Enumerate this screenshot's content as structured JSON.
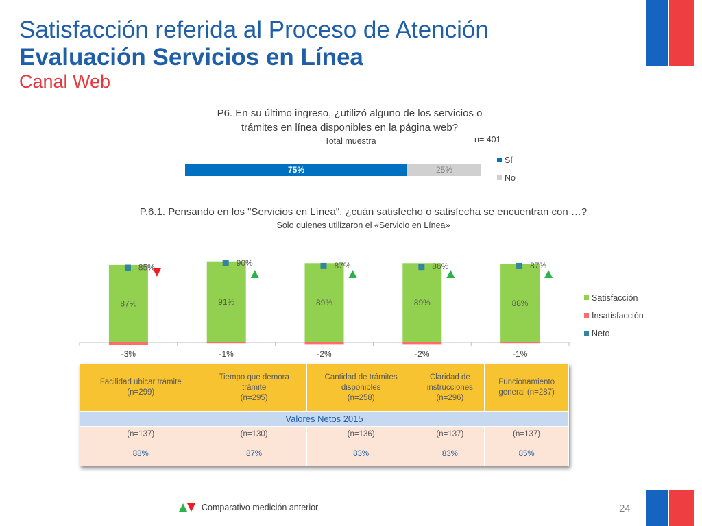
{
  "header": {
    "title_line1": "Satisfacción referida al Proceso de Atención",
    "title_line2": "Evaluación Servicios en Línea",
    "title_line3": "Canal Web"
  },
  "question1": {
    "text_line1": "P6. En su último ingreso, ¿utilizó alguno de los servicios o",
    "text_line2": "trámites en línea disponibles en la página web?",
    "subtitle": "Total muestra",
    "n_label": "n= 401"
  },
  "question2": {
    "text": "P.6.1. Pensando en los \"Servicios en Línea\", ¿cuán satisfecho o satisfecha se encuentran con …?",
    "subtitle": "Solo quienes utilizaron el «Servicio en Línea»"
  },
  "colors": {
    "si": "#0070c0",
    "no": "#d0d0d0",
    "satisfaccion": "#92d050",
    "insatisfaccion": "#ff6b6b",
    "neto": "#31859c",
    "up": "#2db24a",
    "down": "#ee1c25",
    "header_fill": "#f7c331"
  },
  "chart_data": [
    {
      "type": "bar",
      "stacked": true,
      "orientation": "horizontal",
      "series": [
        {
          "name": "Sí",
          "values": [
            75
          ],
          "label": "75%"
        },
        {
          "name": "No",
          "values": [
            25
          ],
          "label": "25%"
        }
      ],
      "legend_position": "right"
    },
    {
      "type": "bar",
      "categories": [
        "Facilidad ubicar trámite",
        "Tiempo que demora trámite",
        "Cantidad de trámites disponibles",
        "Claridad de instrucciones",
        "Funcionamiento general"
      ],
      "series": [
        {
          "name": "Satisfacción",
          "values": [
            87,
            91,
            89,
            89,
            88
          ],
          "labels": [
            "87%",
            "91%",
            "89%",
            "89%",
            "88%"
          ]
        },
        {
          "name": "Insatisfacción",
          "values": [
            -3,
            -1,
            -2,
            -2,
            -1
          ],
          "labels": [
            "-3%",
            "-1%",
            "-2%",
            "-2%",
            "-1%"
          ]
        },
        {
          "name": "Neto",
          "values": [
            85,
            90,
            87,
            86,
            87
          ],
          "labels": [
            "85%",
            "90%",
            "87%",
            "86%",
            "87%"
          ]
        }
      ],
      "trend": [
        "down",
        "up",
        "up",
        "up",
        "up"
      ],
      "legend_position": "right"
    }
  ],
  "table": {
    "headers": [
      [
        "Facilidad ubicar trámite",
        "(n=299)"
      ],
      [
        "Tiempo que demora",
        "trámite",
        "(n=295)"
      ],
      [
        "Cantidad de trámites",
        "disponibles",
        "(n=258)"
      ],
      [
        "Claridad de",
        "instrucciones",
        "(n=296)"
      ],
      [
        "Funcionamiento",
        "general (n=287)"
      ]
    ],
    "subheader": "Valores Netos 2015",
    "n_row": [
      "(n=137)",
      "(n=130)",
      "(n=136)",
      "(n=137)",
      "(n=137)"
    ],
    "pct_row": [
      "88%",
      "87%",
      "83%",
      "83%",
      "85%"
    ]
  },
  "footer": {
    "legend_text": "Comparativo medición anterior",
    "page_number": "24"
  }
}
